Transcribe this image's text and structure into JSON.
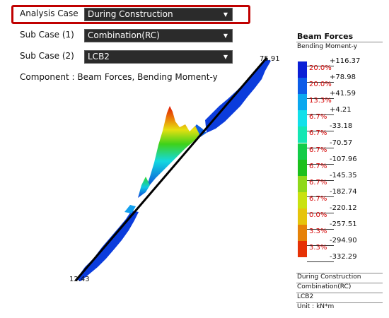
{
  "controls": {
    "analysis_case": {
      "label": "Analysis Case",
      "value": "During Construction"
    },
    "sub_case_1": {
      "label": "Sub Case (1)",
      "value": "Combination(RC)"
    },
    "sub_case_2": {
      "label": "Sub Case (2)",
      "value": "LCB2"
    }
  },
  "component_text": "Component : Beam Forces, Bending Moment-y",
  "plot": {
    "end_label_top": "75.91",
    "end_label_bottom": "12.43"
  },
  "legend": {
    "title": "Beam Forces",
    "subtitle": "Bending Moment-y",
    "values": [
      "+116.37",
      "+78.98",
      "+41.59",
      "+4.21",
      "-33.18",
      "-70.57",
      "-107.96",
      "-145.35",
      "-182.74",
      "-220.12",
      "-257.51",
      "-294.90",
      "-332.29"
    ],
    "percents": [
      "20.0%",
      "20.0%",
      "13.3%",
      "6.7%",
      "6.7%",
      "6.7%",
      "6.7%",
      "6.7%",
      "6.7%",
      "0.0%",
      "3.3%",
      "3.3%"
    ],
    "colors": [
      "#0a1fd6",
      "#0b5ce8",
      "#0aa8ef",
      "#12e0ea",
      "#14e6b4",
      "#12cc48",
      "#1cc01c",
      "#8fd81a",
      "#c9e210",
      "#e6c40c",
      "#e68208",
      "#e63206"
    ],
    "info": [
      "During Construction",
      "Combination(RC)",
      "LCB2",
      "Unit : kN*m"
    ]
  }
}
